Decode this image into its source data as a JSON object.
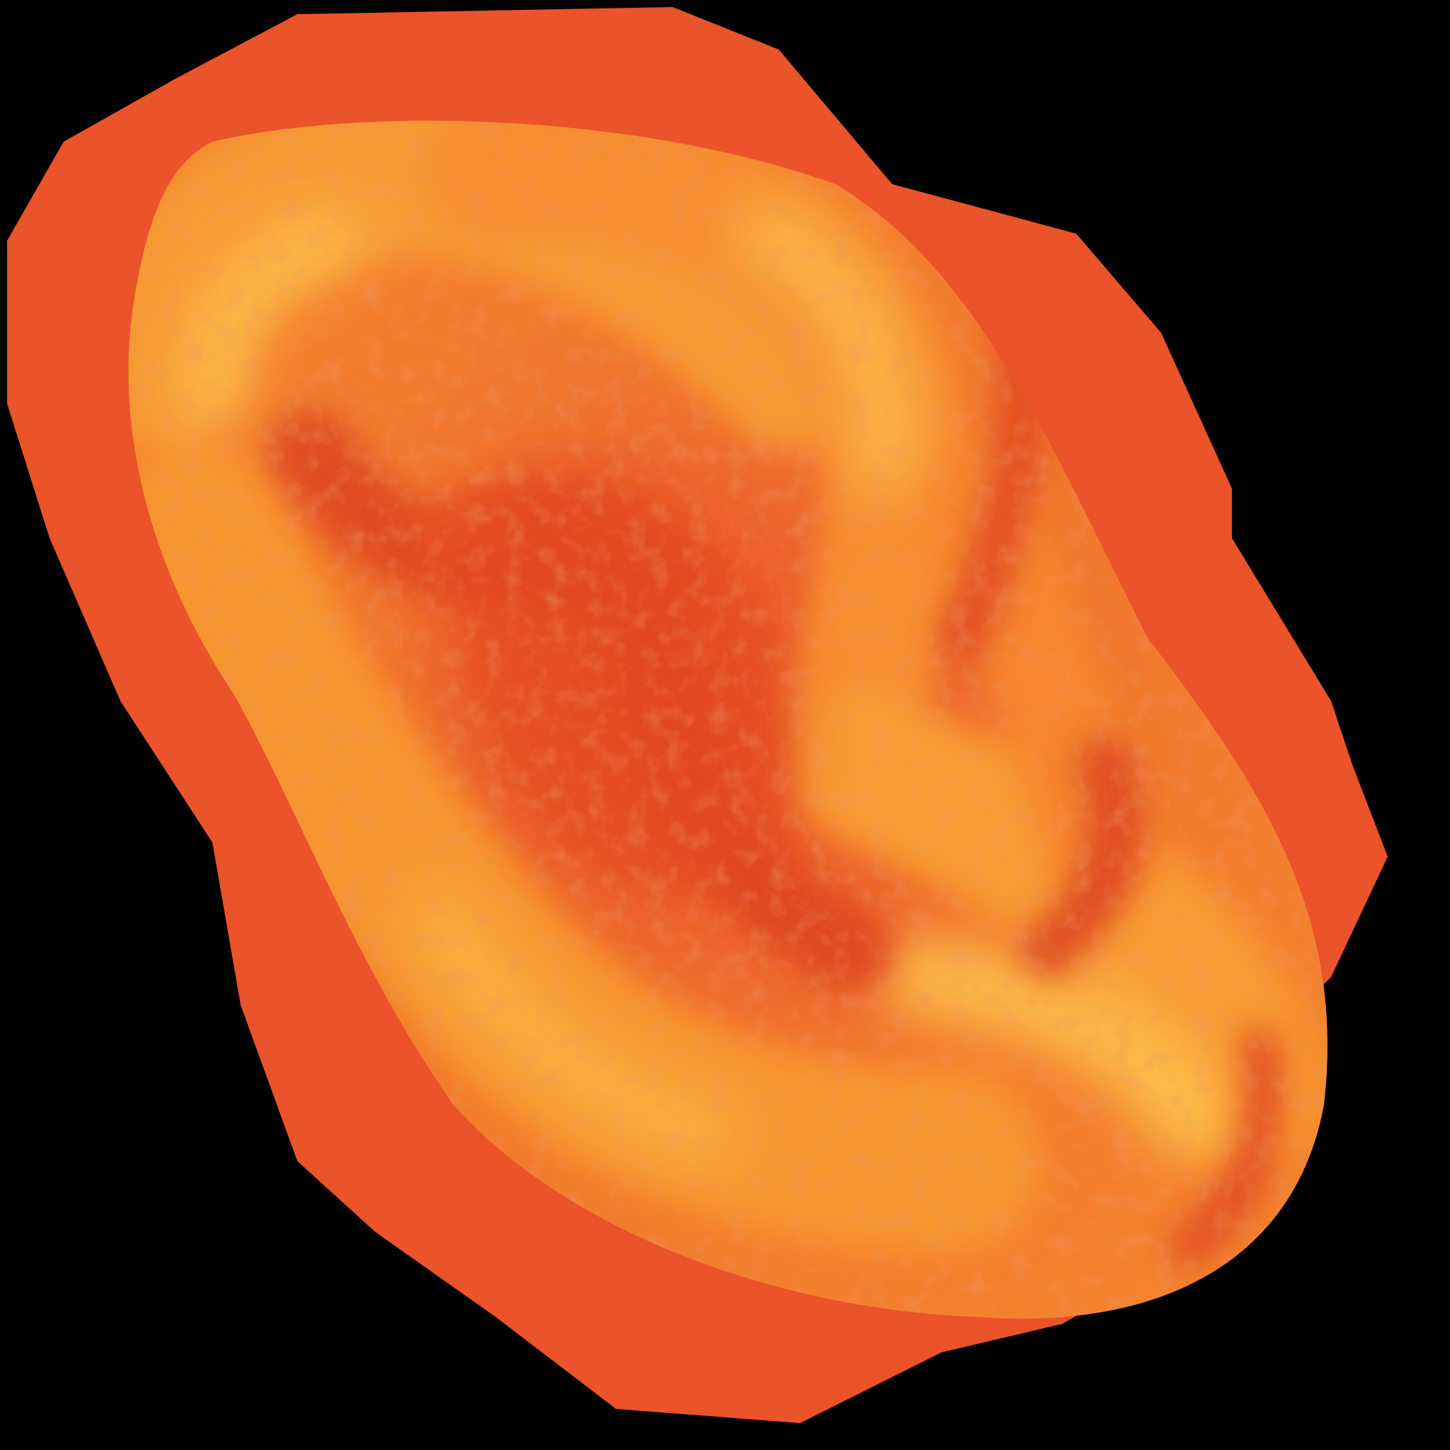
{
  "artwork": {
    "icon": "swirl-orb-icon",
    "colors": {
      "background": "#000000",
      "outer_glow": "#EB532B",
      "mid_orange": "#F2792C",
      "bright_orange": "#F79A33",
      "highlight_yellow": "#FDC04B",
      "deep_red": "#DC4522"
    }
  }
}
